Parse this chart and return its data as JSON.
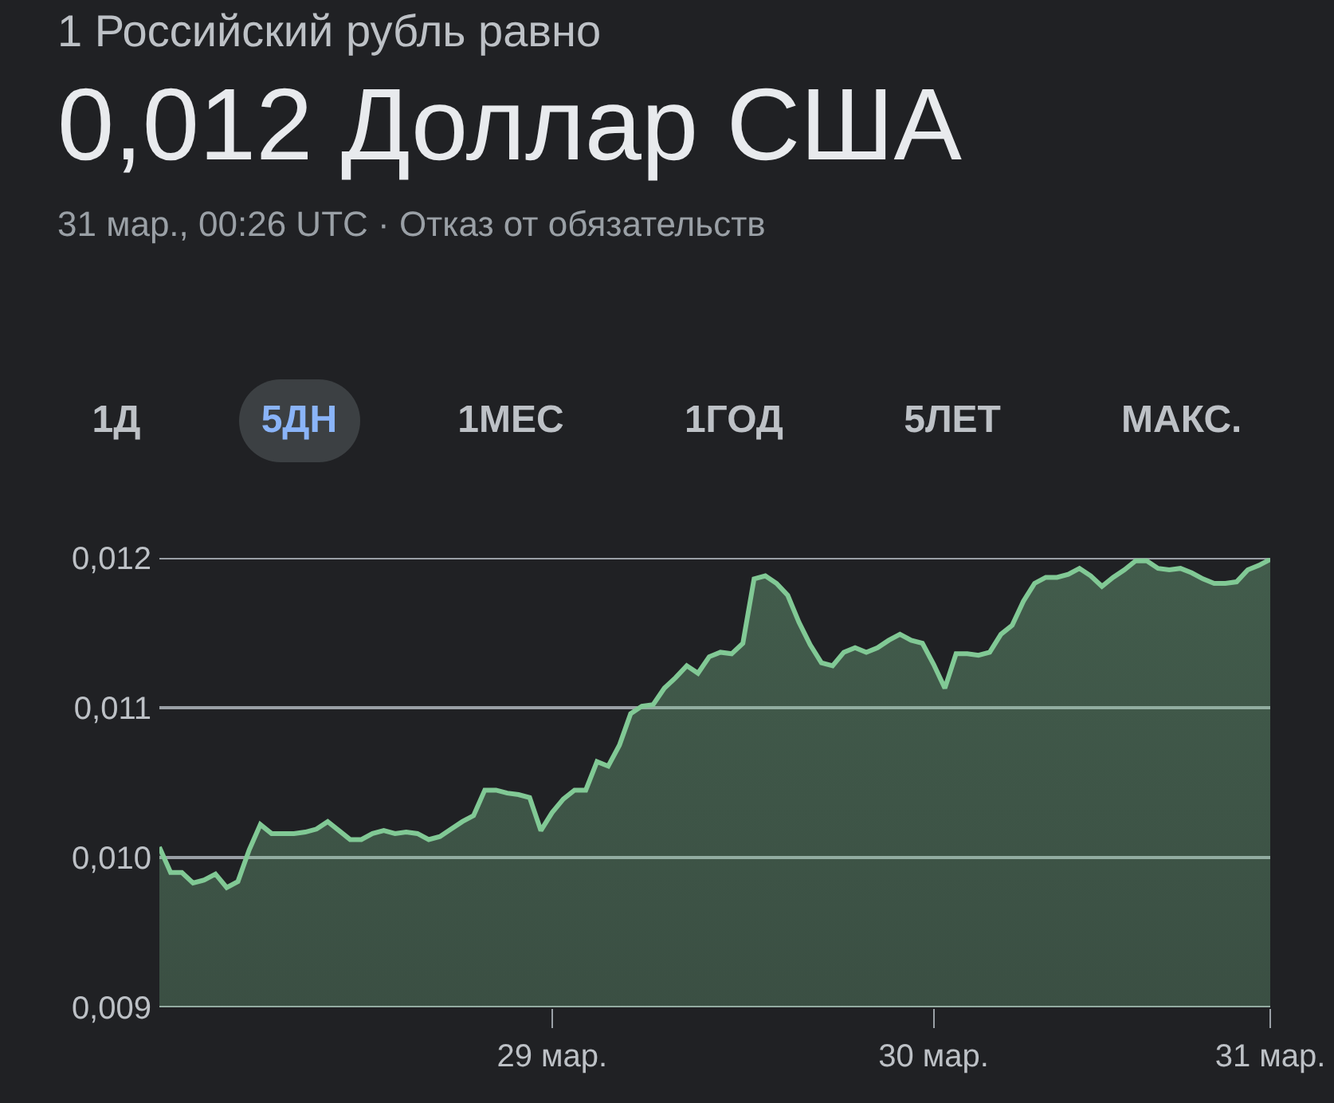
{
  "chart_data": {
    "type": "area",
    "title": "1 Российский рубль равно",
    "subtitle": "0,012 Доллар США",
    "annotations": [
      "31 мар., 00:26 UTC · Отказ от обязательств",
      "1Д",
      "5ДН",
      "1МЕС",
      "1ГОД",
      "5ЛЕТ",
      "МАКС."
    ],
    "categories": [
      null,
      null,
      null,
      null,
      null,
      null,
      null,
      null,
      null,
      null,
      null,
      null,
      null,
      null,
      null,
      null,
      null,
      null,
      null,
      null,
      null,
      null,
      null,
      null,
      null,
      null,
      null,
      null,
      null,
      null,
      null,
      null,
      null,
      null,
      null,
      "29 мар.",
      null,
      null,
      null,
      null,
      null,
      null,
      null,
      null,
      null,
      null,
      null,
      null,
      null,
      null,
      null,
      null,
      null,
      null,
      null,
      null,
      null,
      null,
      null,
      null,
      null,
      null,
      null,
      null,
      null,
      null,
      null,
      null,
      null,
      "30 мар.",
      null,
      null,
      null,
      null,
      null,
      null,
      null,
      null,
      null,
      null,
      null,
      null,
      null,
      null,
      null,
      null,
      null,
      null,
      null,
      null,
      null,
      null,
      null,
      null,
      null,
      null,
      null,
      null,
      null,
      "31 мар."
    ],
    "series": [
      {
        "color": "#81c995",
        "values": [
          0.01007,
          0.0099,
          0.0099,
          0.00983,
          0.00985,
          0.00989,
          0.0098,
          0.00984,
          0.01005,
          0.01022,
          0.01016,
          0.01016,
          0.01016,
          0.01017,
          0.01019,
          0.01024,
          0.01018,
          0.01012,
          0.01012,
          0.01016,
          0.01018,
          0.01016,
          0.01017,
          0.01016,
          0.01012,
          0.01014,
          0.01019,
          0.01024,
          0.01028,
          0.01045,
          0.01045,
          0.01043,
          0.01042,
          0.0104,
          0.01018,
          0.0103,
          0.01039,
          0.01045,
          0.01045,
          0.01064,
          0.01061,
          0.01075,
          0.01096,
          0.01101,
          0.01102,
          0.01113,
          0.0112,
          0.01128,
          0.01123,
          0.01134,
          0.01137,
          0.01136,
          0.01143,
          0.01186,
          0.01188,
          0.01183,
          0.01175,
          0.01157,
          0.01142,
          0.0113,
          0.01128,
          0.01137,
          0.0114,
          0.01137,
          0.0114,
          0.01145,
          0.01149,
          0.01145,
          0.01143,
          0.01129,
          0.01113,
          0.01136,
          0.01136,
          0.01135,
          0.01137,
          0.01149,
          0.01155,
          0.01171,
          0.01183,
          0.01187,
          0.01187,
          0.01189,
          0.01193,
          0.01188,
          0.01181,
          0.01187,
          0.01192,
          0.01198,
          0.01198,
          0.01193,
          0.01192,
          0.01193,
          0.0119,
          0.01186,
          0.01183,
          0.01183,
          0.01184,
          0.01192,
          0.01195,
          0.01199
        ]
      }
    ],
    "ylim": [
      0.009,
      0.012
    ],
    "yticks": [
      {
        "value": 0.009,
        "label": "0,009"
      },
      {
        "value": 0.01,
        "label": "0,010"
      },
      {
        "value": 0.011,
        "label": "0,011"
      },
      {
        "value": 0.012,
        "label": "0,012"
      }
    ],
    "grid": "y"
  }
}
